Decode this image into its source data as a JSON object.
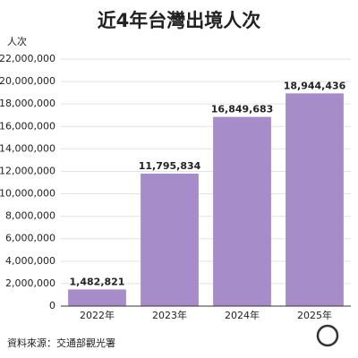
{
  "chart_data": {
    "type": "bar",
    "title": "近4年台灣出境人次",
    "y_label": "人次",
    "categories": [
      "2022年",
      "2023年",
      "2024年",
      "2025年"
    ],
    "values": [
      1482821,
      11795834,
      16849683,
      18944436
    ],
    "value_labels": [
      "1,482,821",
      "11,795,834",
      "16,849,683",
      "18,944,436"
    ],
    "color": "#a68dc9",
    "ylim": [
      0,
      22000000
    ],
    "yticks": [
      0,
      {
        "value": 2000000,
        "label": "2,000,000"
      },
      {
        "value": 4000000,
        "label": "4,000,000"
      },
      {
        "value": 6000000,
        "label": "6,000,000"
      },
      {
        "value": 8000000,
        "label": "8,000,000"
      },
      {
        "value": 10000000,
        "label": "10,000,000"
      },
      {
        "value": 12000000,
        "label": "12,000,000"
      },
      {
        "value": 14000000,
        "label": "14,000,000"
      },
      {
        "value": 16000000,
        "label": "16,000,000"
      },
      {
        "value": 18000000,
        "label": "18,000,000"
      },
      {
        "value": 20000000,
        "label": "20,000,000"
      },
      {
        "value": 22000000,
        "label": "22,000,000"
      }
    ],
    "grid": true,
    "source": "資料來源：交通部觀光署"
  }
}
